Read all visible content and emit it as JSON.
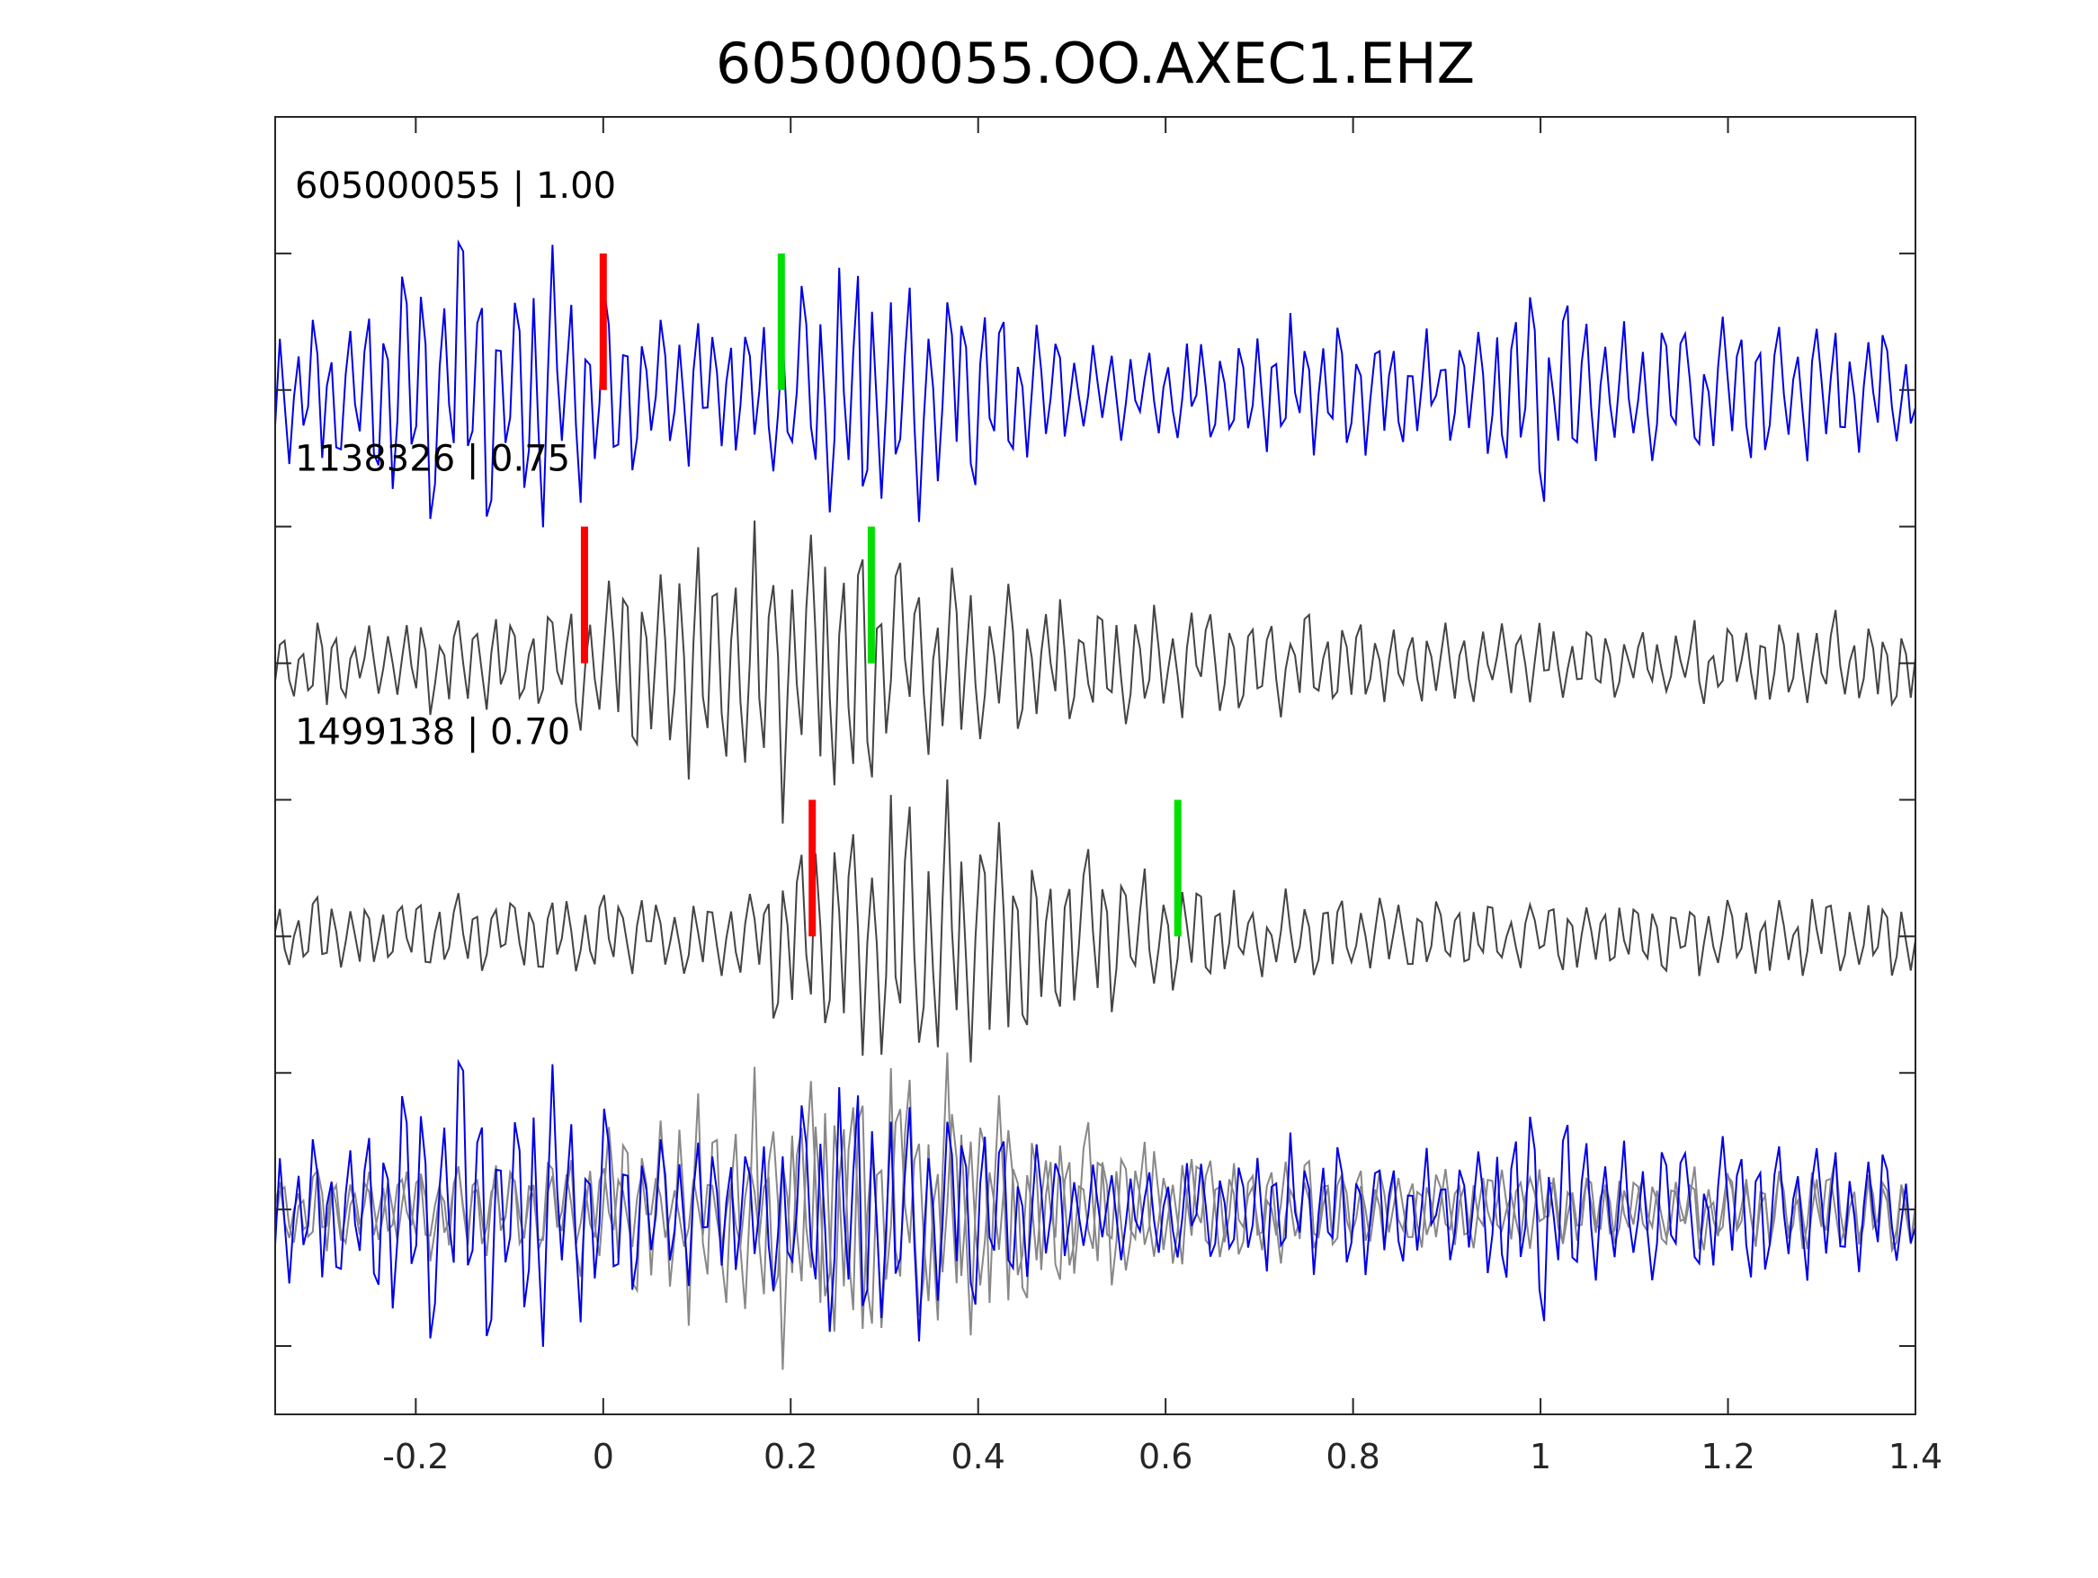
{
  "chart_data": {
    "type": "line",
    "title": "605000055.OO.AXEC1.EHZ",
    "xlabel": "",
    "ylabel": "",
    "xlim": [
      -0.35,
      1.4
    ],
    "x_ticks": [
      -0.2,
      0,
      0.2,
      0.4,
      0.6,
      0.8,
      1,
      1.2,
      1.4
    ],
    "x_tick_labels": [
      "-0.2",
      "0",
      "0.2",
      "0.4",
      "0.6",
      "0.8",
      "1",
      "1.2",
      "1.4"
    ],
    "y_tick_labels_shown": false,
    "grid": false,
    "legend": "none",
    "sample_count": 350,
    "colors": {
      "template": "#0000e6",
      "neighbor": "#444444",
      "overlay": "#888888",
      "p_pick": "#ff0000",
      "s_pick": "#00e000",
      "axes": "#262626"
    },
    "series": [
      {
        "label": "605000055 | 1.00",
        "offset": 6,
        "color": "template",
        "p_pick": 0.0,
        "s_pick": 0.19,
        "amplitude_envelope": [
          {
            "t": -0.35,
            "a": 0.45
          },
          {
            "t": -0.28,
            "a": 0.6
          },
          {
            "t": -0.2,
            "a": 1.0
          },
          {
            "t": -0.05,
            "a": 1.0
          },
          {
            "t": 0.05,
            "a": 0.6
          },
          {
            "t": 0.15,
            "a": 0.5
          },
          {
            "t": 0.25,
            "a": 1.0
          },
          {
            "t": 0.33,
            "a": 0.9
          },
          {
            "t": 0.42,
            "a": 0.75
          },
          {
            "t": 0.5,
            "a": 0.35
          },
          {
            "t": 0.65,
            "a": 0.35
          },
          {
            "t": 0.75,
            "a": 0.55
          },
          {
            "t": 0.92,
            "a": 0.35
          },
          {
            "t": 1.0,
            "a": 0.8
          },
          {
            "t": 1.1,
            "a": 0.45
          },
          {
            "t": 1.3,
            "a": 0.55
          },
          {
            "t": 1.4,
            "a": 0.4
          }
        ]
      },
      {
        "label": "1138326 | 0.75",
        "offset": 4,
        "color": "neighbor",
        "p_pick": -0.02,
        "s_pick": 0.286,
        "amplitude_envelope": [
          {
            "t": -0.35,
            "a": 0.3
          },
          {
            "t": -0.05,
            "a": 0.35
          },
          {
            "t": 0.0,
            "a": 0.55
          },
          {
            "t": 0.1,
            "a": 0.9
          },
          {
            "t": 0.2,
            "a": 1.05
          },
          {
            "t": 0.25,
            "a": 1.1
          },
          {
            "t": 0.3,
            "a": 0.8
          },
          {
            "t": 0.4,
            "a": 0.55
          },
          {
            "t": 0.55,
            "a": 0.45
          },
          {
            "t": 0.7,
            "a": 0.35
          },
          {
            "t": 0.9,
            "a": 0.3
          },
          {
            "t": 1.1,
            "a": 0.25
          },
          {
            "t": 1.3,
            "a": 0.35
          },
          {
            "t": 1.4,
            "a": 0.3
          }
        ]
      },
      {
        "label": "1499138 | 0.70",
        "offset": 2,
        "color": "neighbor",
        "p_pick": 0.223,
        "s_pick": 0.613,
        "amplitude_envelope": [
          {
            "t": -0.35,
            "a": 0.25
          },
          {
            "t": 0.15,
            "a": 0.3
          },
          {
            "t": 0.2,
            "a": 0.7
          },
          {
            "t": 0.3,
            "a": 1.05
          },
          {
            "t": 0.35,
            "a": 1.1
          },
          {
            "t": 0.42,
            "a": 0.8
          },
          {
            "t": 0.55,
            "a": 0.55
          },
          {
            "t": 0.7,
            "a": 0.3
          },
          {
            "t": 1.0,
            "a": 0.25
          },
          {
            "t": 1.3,
            "a": 0.28
          },
          {
            "t": 1.4,
            "a": 0.25
          }
        ]
      }
    ],
    "overlay": {
      "offset": 0,
      "description_of_content": "all three traces superimposed; template in blue, others in gray"
    }
  }
}
